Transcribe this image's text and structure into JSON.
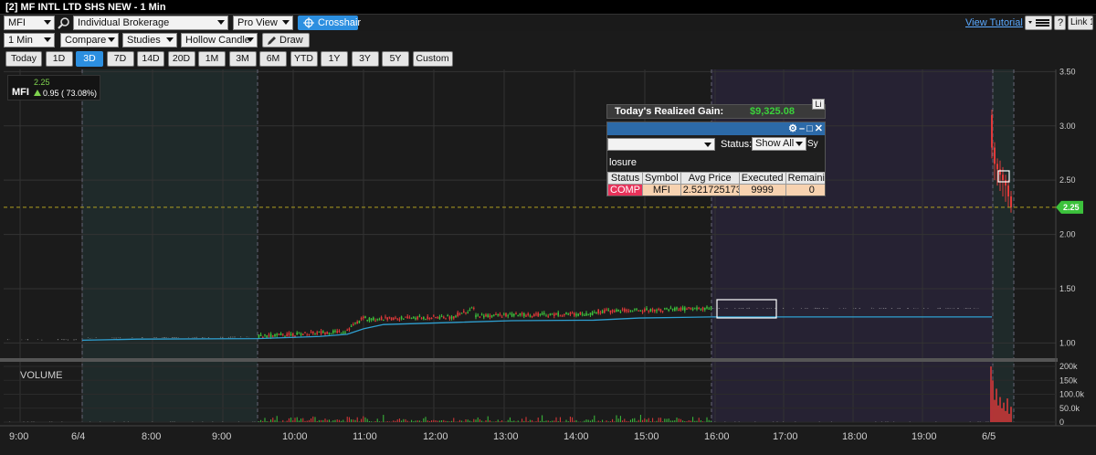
{
  "window": {
    "title": "[2] MF INTL LTD SHS NEW - 1 Min"
  },
  "toolbar": {
    "symbol": "MFI",
    "account": "Individual Brokerage",
    "view": "Pro View",
    "crosshair_label": "Crosshair",
    "tutorial_label": "View Tutorial",
    "help_label": "?",
    "link_label": "Link 1",
    "interval": "1 Min",
    "compare": "Compare",
    "studies": "Studies",
    "candle_type": "Hollow Candle",
    "draw_label": "Draw",
    "ranges": [
      "Today",
      "1D",
      "3D",
      "7D",
      "14D",
      "20D",
      "1M",
      "3M",
      "6M",
      "YTD",
      "1Y",
      "3Y",
      "5Y",
      "Custom"
    ],
    "active_range": "3D"
  },
  "quote": {
    "symbol": "MFI",
    "last": "2.25",
    "change": "0.95 ( 73.08%)"
  },
  "gain_panel": {
    "label": "Today's Realized Gain:",
    "value": "$9,325.08",
    "link_stub": "Li"
  },
  "orders_panel": {
    "status_label": "Status:",
    "status_value": "Show All",
    "status_cut": "Sy",
    "closure_text": "losure",
    "columns": [
      "Status",
      "Symbol",
      "Avg Price",
      "Executed",
      "Remaining"
    ],
    "rows": [
      [
        "COMP",
        "MFI",
        "2.521725173",
        "9999",
        "0"
      ]
    ]
  },
  "chart_data": {
    "type": "candlestick",
    "price_ticks": [
      "3.50",
      "3.00",
      "2.50",
      "2.00",
      "1.50",
      "1.00"
    ],
    "volume_ticks": [
      "200k",
      "150k",
      "100.0k",
      "50.0k",
      "0"
    ],
    "volume_label": "VOLUME",
    "time_ticks": [
      "9:00",
      "6/4",
      "8:00",
      "9:00",
      "10:00",
      "11:00",
      "12:00",
      "13:00",
      "14:00",
      "15:00",
      "16:00",
      "17:00",
      "18:00",
      "19:00",
      "6/5"
    ],
    "last_price_tag": "2.25",
    "last_price": 2.25,
    "ylim": [
      0.86,
      3.52
    ],
    "volume_lim": [
      0,
      210000
    ],
    "grid": true,
    "colors": {
      "up": "#3cc23c",
      "down": "#e23a3a",
      "vwap": "#2f9fd0",
      "last_line": "#b0a020",
      "tag": "#3cc23c"
    }
  }
}
